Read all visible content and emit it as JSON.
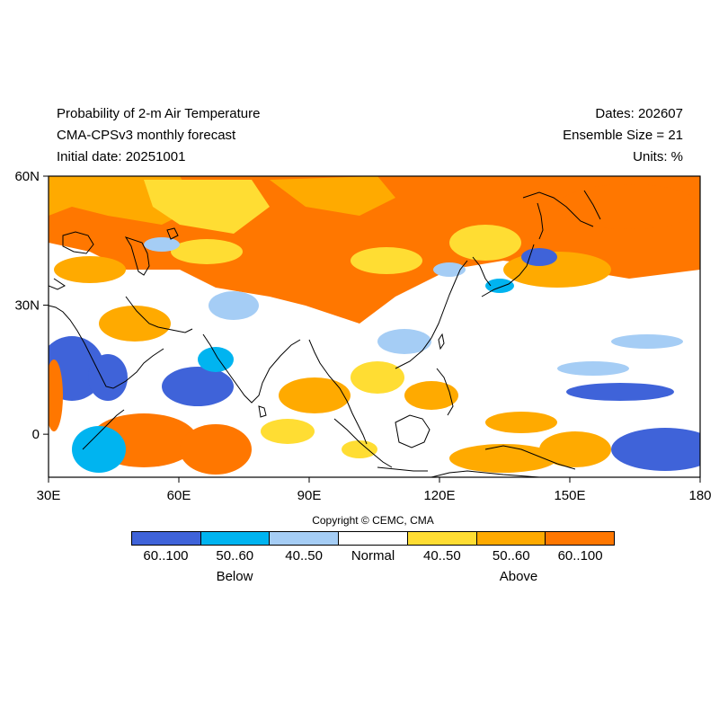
{
  "header": {
    "left": [
      "Probability of 2-m Air Temperature",
      "CMA-CPSv3 monthly forecast",
      "Initial date: 20251001"
    ],
    "right": [
      "Dates: 202607",
      "Ensemble Size = 21",
      "Units: %"
    ]
  },
  "map": {
    "lon_range": [
      30,
      180
    ],
    "lat_range": [
      -10,
      60
    ],
    "x_ticks": [
      {
        "value": 30,
        "label": "30E"
      },
      {
        "value": 60,
        "label": "60E"
      },
      {
        "value": 90,
        "label": "90E"
      },
      {
        "value": 120,
        "label": "120E"
      },
      {
        "value": 150,
        "label": "150E"
      },
      {
        "value": 180,
        "label": "180"
      }
    ],
    "y_ticks": [
      {
        "value": 60,
        "label": "60N"
      },
      {
        "value": 30,
        "label": "30N"
      },
      {
        "value": 0,
        "label": "0"
      }
    ]
  },
  "copyright": "Copyright © CEMC, CMA",
  "legend": {
    "categories": [
      {
        "label": "60..100",
        "color": "#3f63d9"
      },
      {
        "label": "50..60",
        "color": "#00b4f0"
      },
      {
        "label": "40..50",
        "color": "#a5cdf5"
      },
      {
        "label": "Normal",
        "color": "#ffffff"
      },
      {
        "label": "40..50",
        "color": "#ffdd33"
      },
      {
        "label": "50..60",
        "color": "#ffaa00"
      },
      {
        "label": "60..100",
        "color": "#ff7700"
      }
    ],
    "below_label": "Below",
    "above_label": "Above"
  }
}
